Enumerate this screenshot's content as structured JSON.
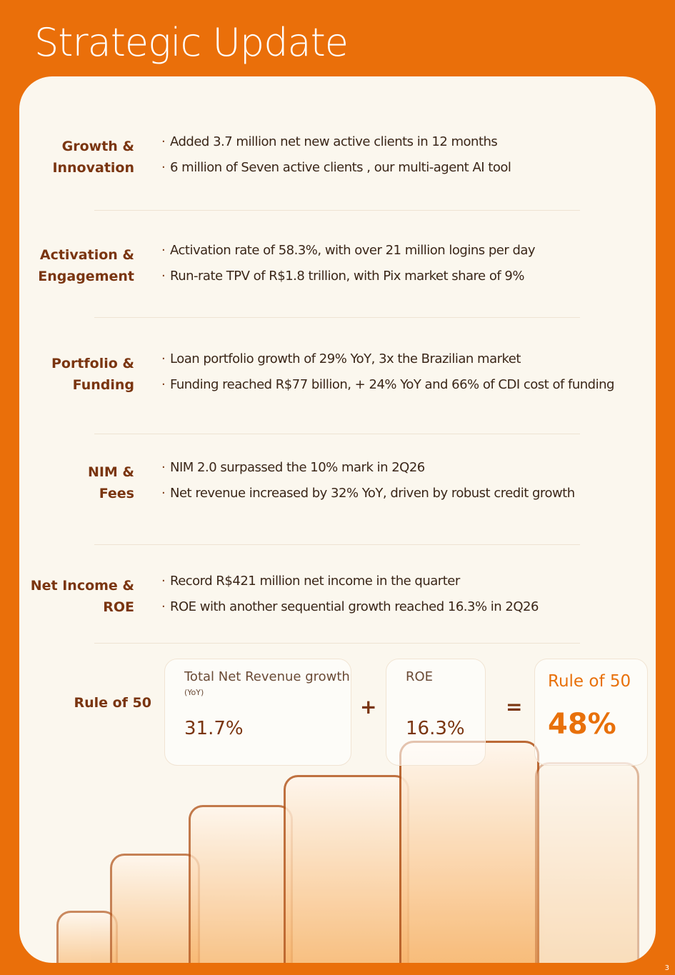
{
  "title": "Strategic Update",
  "sections": [
    {
      "label": [
        "Growth &",
        "Innovation"
      ],
      "bullets": [
        "Added 3.7 million net new active clients in 12 months",
        "6 million of Seven active clients , our multi-agent AI tool"
      ]
    },
    {
      "label": [
        "Activation &",
        "Engagement"
      ],
      "bullets": [
        "Activation rate of 58.3%, with over 21 million logins per day",
        "Run-rate TPV of R$1.8 trillion, with Pix market share of 9%"
      ]
    },
    {
      "label": [
        "Portfolio &",
        "Funding"
      ],
      "bullets": [
        "Loan portfolio growth of 29% YoY, 3x the Brazilian market",
        "Funding reached R$77 billion, + 24% YoY and 66% of CDI cost of funding"
      ]
    },
    {
      "label": [
        "NIM &",
        "Fees"
      ],
      "bullets": [
        "NIM 2.0 surpassed the 10% mark in 2Q26",
        "Net revenue increased by 32% YoY, driven by robust credit growth"
      ]
    },
    {
      "label": [
        "Net Income &",
        "ROE"
      ],
      "bullets": [
        "Record R$421 million net income in the quarter",
        "ROE with another sequential growth reached 16.3% in 2Q26"
      ]
    }
  ],
  "rule": {
    "label": "Rule of 50",
    "revenue": {
      "title": "Total Net Revenue growth",
      "note": "(YoY)",
      "value": "31.7%"
    },
    "plus": "+",
    "roe": {
      "title": "ROE",
      "value": "16.3%"
    },
    "equals": "=",
    "result": {
      "title": "Rule of 50",
      "value": "48%"
    }
  },
  "page_number": "3"
}
